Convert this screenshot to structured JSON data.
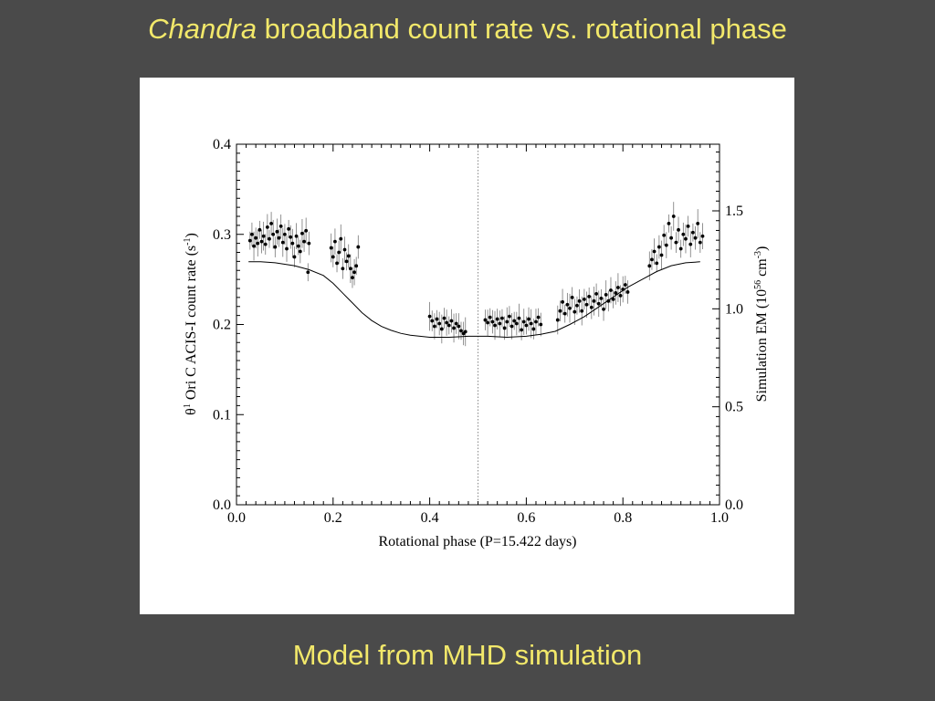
{
  "slide": {
    "title_italic": "Chandra",
    "title_rest": " broadband count rate vs. rotational phase",
    "caption": "Model from MHD simulation"
  },
  "chart_data": {
    "type": "scatter",
    "title": "",
    "xlabel": "Rotational phase (P=15.422 days)",
    "ylabel_left": {
      "theta": "θ",
      "sup1": "1",
      "mid": " Ori C ACIS-I count rate (s",
      "sup2": "-1",
      "end": ")"
    },
    "ylabel_right": {
      "pre": "Simulation EM (10",
      "sup1": "56",
      "mid": " cm",
      "sup2": "-3",
      "end": ")"
    },
    "xlim": [
      0.0,
      1.0
    ],
    "ylim_left": [
      0.0,
      0.4
    ],
    "ylim_right": [
      0.0,
      1.84
    ],
    "x_ticks": [
      "0.0",
      "0.2",
      "0.4",
      "0.6",
      "0.8",
      "1.0"
    ],
    "y_left_ticks": [
      "0.0",
      "0.1",
      "0.2",
      "0.3",
      "0.4"
    ],
    "y_right_ticks": [
      "0.0",
      "0.5",
      "1.0",
      "1.5"
    ],
    "vline_x": 0.5,
    "colors": {
      "points": "#000000",
      "errorbars": "#777777",
      "model": "#000000",
      "title": "#f2e86a",
      "background": "#4a4a4a"
    },
    "series": [
      {
        "kind": "points",
        "points": [
          [
            0.028,
            0.293
          ],
          [
            0.032,
            0.3
          ],
          [
            0.036,
            0.287
          ],
          [
            0.04,
            0.296
          ],
          [
            0.044,
            0.29
          ],
          [
            0.048,
            0.305
          ],
          [
            0.052,
            0.292
          ],
          [
            0.056,
            0.298
          ],
          [
            0.06,
            0.289
          ],
          [
            0.064,
            0.308
          ],
          [
            0.068,
            0.295
          ],
          [
            0.072,
            0.312
          ],
          [
            0.076,
            0.3
          ],
          [
            0.08,
            0.286
          ],
          [
            0.084,
            0.303
          ],
          [
            0.088,
            0.296
          ],
          [
            0.092,
            0.309
          ],
          [
            0.096,
            0.291
          ],
          [
            0.1,
            0.3
          ],
          [
            0.104,
            0.284
          ],
          [
            0.108,
            0.306
          ],
          [
            0.112,
            0.297
          ],
          [
            0.116,
            0.29
          ],
          [
            0.12,
            0.275
          ],
          [
            0.124,
            0.298
          ],
          [
            0.128,
            0.287
          ],
          [
            0.132,
            0.281
          ],
          [
            0.136,
            0.301
          ],
          [
            0.14,
            0.292
          ],
          [
            0.144,
            0.304
          ],
          [
            0.148,
            0.258
          ],
          [
            0.15,
            0.29
          ],
          [
            0.196,
            0.285
          ],
          [
            0.2,
            0.275
          ],
          [
            0.204,
            0.292
          ],
          [
            0.208,
            0.268
          ],
          [
            0.212,
            0.28
          ],
          [
            0.216,
            0.295
          ],
          [
            0.22,
            0.262
          ],
          [
            0.224,
            0.283
          ],
          [
            0.228,
            0.27
          ],
          [
            0.232,
            0.276
          ],
          [
            0.236,
            0.262
          ],
          [
            0.24,
            0.252
          ],
          [
            0.244,
            0.258
          ],
          [
            0.248,
            0.265
          ],
          [
            0.252,
            0.286
          ],
          [
            0.4,
            0.209
          ],
          [
            0.405,
            0.204
          ],
          [
            0.41,
            0.198
          ],
          [
            0.415,
            0.206
          ],
          [
            0.42,
            0.201
          ],
          [
            0.425,
            0.195
          ],
          [
            0.43,
            0.207
          ],
          [
            0.435,
            0.202
          ],
          [
            0.44,
            0.199
          ],
          [
            0.445,
            0.204
          ],
          [
            0.45,
            0.196
          ],
          [
            0.455,
            0.201
          ],
          [
            0.46,
            0.198
          ],
          [
            0.465,
            0.193
          ],
          [
            0.47,
            0.19
          ],
          [
            0.474,
            0.192
          ],
          [
            0.515,
            0.205
          ],
          [
            0.52,
            0.202
          ],
          [
            0.525,
            0.208
          ],
          [
            0.53,
            0.203
          ],
          [
            0.535,
            0.199
          ],
          [
            0.54,
            0.206
          ],
          [
            0.545,
            0.201
          ],
          [
            0.55,
            0.207
          ],
          [
            0.555,
            0.196
          ],
          [
            0.56,
            0.203
          ],
          [
            0.565,
            0.209
          ],
          [
            0.57,
            0.198
          ],
          [
            0.575,
            0.204
          ],
          [
            0.58,
            0.201
          ],
          [
            0.585,
            0.207
          ],
          [
            0.59,
            0.194
          ],
          [
            0.595,
            0.203
          ],
          [
            0.6,
            0.199
          ],
          [
            0.605,
            0.206
          ],
          [
            0.61,
            0.201
          ],
          [
            0.615,
            0.195
          ],
          [
            0.62,
            0.203
          ],
          [
            0.625,
            0.208
          ],
          [
            0.63,
            0.2
          ],
          [
            0.665,
            0.205
          ],
          [
            0.67,
            0.215
          ],
          [
            0.675,
            0.225
          ],
          [
            0.68,
            0.212
          ],
          [
            0.685,
            0.222
          ],
          [
            0.69,
            0.218
          ],
          [
            0.695,
            0.23
          ],
          [
            0.7,
            0.214
          ],
          [
            0.705,
            0.221
          ],
          [
            0.71,
            0.226
          ],
          [
            0.715,
            0.215
          ],
          [
            0.72,
            0.228
          ],
          [
            0.725,
            0.222
          ],
          [
            0.73,
            0.231
          ],
          [
            0.735,
            0.219
          ],
          [
            0.74,
            0.226
          ],
          [
            0.745,
            0.234
          ],
          [
            0.75,
            0.223
          ],
          [
            0.755,
            0.229
          ],
          [
            0.76,
            0.217
          ],
          [
            0.765,
            0.233
          ],
          [
            0.77,
            0.226
          ],
          [
            0.775,
            0.238
          ],
          [
            0.78,
            0.228
          ],
          [
            0.785,
            0.235
          ],
          [
            0.79,
            0.241
          ],
          [
            0.795,
            0.232
          ],
          [
            0.8,
            0.239
          ],
          [
            0.805,
            0.244
          ],
          [
            0.81,
            0.236
          ],
          [
            0.855,
            0.265
          ],
          [
            0.86,
            0.272
          ],
          [
            0.865,
            0.281
          ],
          [
            0.87,
            0.268
          ],
          [
            0.875,
            0.286
          ],
          [
            0.88,
            0.277
          ],
          [
            0.885,
            0.299
          ],
          [
            0.89,
            0.288
          ],
          [
            0.895,
            0.312
          ],
          [
            0.9,
            0.296
          ],
          [
            0.905,
            0.32
          ],
          [
            0.91,
            0.291
          ],
          [
            0.915,
            0.305
          ],
          [
            0.92,
            0.284
          ],
          [
            0.925,
            0.3
          ],
          [
            0.93,
            0.295
          ],
          [
            0.935,
            0.309
          ],
          [
            0.94,
            0.289
          ],
          [
            0.945,
            0.302
          ],
          [
            0.95,
            0.296
          ],
          [
            0.955,
            0.312
          ],
          [
            0.96,
            0.291
          ],
          [
            0.965,
            0.298
          ]
        ]
      },
      {
        "kind": "model-curve",
        "x": [
          0.025,
          0.05,
          0.08,
          0.12,
          0.15,
          0.18,
          0.2,
          0.22,
          0.24,
          0.26,
          0.28,
          0.3,
          0.32,
          0.34,
          0.36,
          0.38,
          0.4,
          0.44,
          0.48,
          0.52,
          0.56,
          0.6,
          0.63,
          0.66,
          0.69,
          0.72,
          0.75,
          0.78,
          0.81,
          0.84,
          0.87,
          0.9,
          0.93,
          0.96
        ],
        "y": [
          1.24,
          1.24,
          1.235,
          1.22,
          1.2,
          1.17,
          1.13,
          1.08,
          1.03,
          0.98,
          0.94,
          0.91,
          0.89,
          0.875,
          0.865,
          0.86,
          0.855,
          0.855,
          0.86,
          0.86,
          0.855,
          0.86,
          0.87,
          0.885,
          0.92,
          0.96,
          1.01,
          1.06,
          1.11,
          1.15,
          1.19,
          1.22,
          1.235,
          1.24
        ]
      }
    ]
  }
}
